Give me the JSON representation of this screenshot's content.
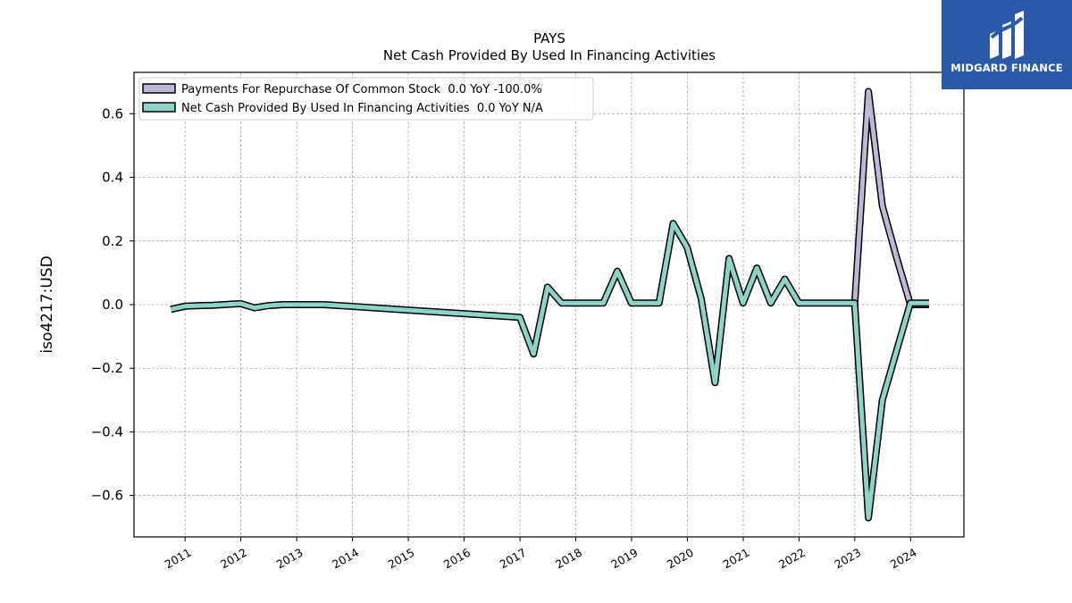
{
  "chart_data": {
    "type": "line",
    "title": "PAYS",
    "subtitle": "Net Cash Provided By Used In Financing Activities",
    "ylabel": "iso4217:USD",
    "xlabel": "",
    "ylim": [
      -0.73,
      0.73
    ],
    "xlim": [
      "2010-02-01",
      "2024-12-15"
    ],
    "y_ticks": [
      0.6,
      0.4,
      0.2,
      0.0,
      -0.2,
      -0.4,
      -0.6
    ],
    "y_tick_labels": [
      "0.6",
      "0.4",
      "0.2",
      "0.0",
      "−0.2",
      "−0.4",
      "−0.6"
    ],
    "x_ticks": [
      "2011-01-01",
      "2012-01-01",
      "2013-01-01",
      "2014-01-01",
      "2015-01-01",
      "2016-01-01",
      "2017-01-01",
      "2018-01-01",
      "2019-01-01",
      "2020-01-01",
      "2021-01-01",
      "2022-01-01",
      "2023-01-01",
      "2024-01-01"
    ],
    "x_tick_labels": [
      "2011",
      "2012",
      "2013",
      "2014",
      "2015",
      "2016",
      "2017",
      "2018",
      "2019",
      "2020",
      "2021",
      "2022",
      "2023",
      "2024"
    ],
    "grid": true,
    "legend_position": "top-left",
    "series": [
      {
        "name": "Payments For Repurchase Of Common Stock",
        "legend_label": "Payments For Repurchase Of Common Stock  0.0 YoY -100.0%",
        "color": "#bcb8d8",
        "points": [
          [
            "2022-12-31",
            0.0
          ],
          [
            "2023-03-31",
            0.67
          ],
          [
            "2023-06-30",
            0.31
          ],
          [
            "2023-09-30",
            0.15
          ],
          [
            "2023-12-31",
            0.0
          ],
          [
            "2024-03-31",
            0.0
          ],
          [
            "2024-05-01",
            0.0
          ]
        ]
      },
      {
        "name": "Net Cash Provided By Used In Financing Activities",
        "legend_label": "Net Cash Provided By Used In Financing Activities  0.0 YoY N/A",
        "color": "#8dd3c7",
        "points": [
          [
            "2010-09-30",
            -0.015
          ],
          [
            "2010-12-31",
            -0.005
          ],
          [
            "2011-03-31",
            -0.003
          ],
          [
            "2011-06-30",
            -0.002
          ],
          [
            "2011-12-31",
            0.003
          ],
          [
            "2012-03-31",
            -0.01
          ],
          [
            "2012-06-30",
            -0.003
          ],
          [
            "2012-09-30",
            0.0
          ],
          [
            "2013-06-30",
            0.0
          ],
          [
            "2016-12-31",
            -0.04
          ],
          [
            "2017-03-31",
            -0.155
          ],
          [
            "2017-06-30",
            0.055
          ],
          [
            "2017-09-30",
            0.005
          ],
          [
            "2018-06-30",
            0.005
          ],
          [
            "2018-09-30",
            0.105
          ],
          [
            "2018-12-31",
            0.005
          ],
          [
            "2019-06-30",
            0.005
          ],
          [
            "2019-09-30",
            0.255
          ],
          [
            "2019-12-31",
            0.18
          ],
          [
            "2020-03-31",
            0.02
          ],
          [
            "2020-06-30",
            -0.245
          ],
          [
            "2020-09-30",
            0.145
          ],
          [
            "2020-12-31",
            0.005
          ],
          [
            "2021-03-31",
            0.115
          ],
          [
            "2021-06-30",
            0.005
          ],
          [
            "2021-09-30",
            0.08
          ],
          [
            "2021-12-31",
            0.005
          ],
          [
            "2022-12-31",
            0.005
          ],
          [
            "2023-03-31",
            -0.67
          ],
          [
            "2023-06-30",
            -0.3
          ],
          [
            "2023-12-31",
            0.005
          ],
          [
            "2024-05-01",
            0.005
          ]
        ]
      }
    ]
  },
  "logo": {
    "text": "MIDGARD FINANCE",
    "background": "#2a5aa8"
  }
}
